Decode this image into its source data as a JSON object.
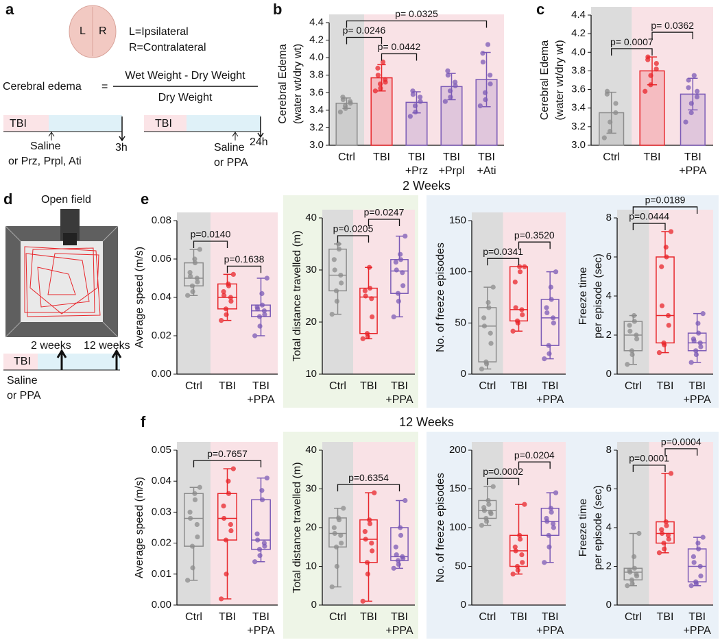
{
  "panel_a": {
    "letter": "a",
    "brain_left": "L",
    "brain_right": "R",
    "legend": [
      "L=Ipsilateral",
      "R=Contralateral"
    ],
    "formula_name": "Cerebral edema",
    "equals": "=",
    "numerator": "Wet Weight - Dry Weight",
    "denominator": "Dry Weight",
    "timeline_1": {
      "phase": "TBI",
      "treatment": [
        "Saline",
        "or Prz, Prpl, Ati"
      ],
      "end": "3h"
    },
    "timeline_2": {
      "phase": "TBI",
      "treatment": [
        "Saline",
        "or PPA"
      ],
      "end": "24h"
    }
  },
  "panel_d": {
    "letter": "d",
    "title": "Open field",
    "timepoints": [
      "2 weeks",
      "12 weeks"
    ],
    "phase": "TBI",
    "treatment": [
      "Saline",
      "or PPA"
    ]
  },
  "panel_letters": [
    "b",
    "c",
    "e",
    "f"
  ],
  "section_titles": [
    "2 Weeks",
    "12 Weeks"
  ],
  "chart_data": [
    {
      "type": "bar",
      "ylabel": [
        "Cerebral Edema",
        "(water wt/dry wt)"
      ],
      "categories": [
        [
          "Ctrl"
        ],
        [
          "TBI"
        ],
        [
          "TBI",
          "+Prz"
        ],
        [
          "TBI",
          "+Prpl"
        ],
        [
          "TBI",
          "+Ati"
        ]
      ],
      "colors": [
        "#8c8c8c",
        "#e8262b",
        "#7b5ab6",
        "#7b5ab6",
        "#7b5ab6"
      ],
      "values": [
        3.48,
        3.77,
        3.49,
        3.67,
        3.75
      ],
      "errors": [
        0.06,
        0.15,
        0.12,
        0.15,
        0.31
      ],
      "points": [
        [
          3.38,
          3.42,
          3.45,
          3.48,
          3.5,
          3.52,
          3.55
        ],
        [
          3.62,
          3.65,
          3.7,
          3.72,
          3.75,
          3.8,
          3.88,
          3.95
        ],
        [
          3.33,
          3.38,
          3.45,
          3.5,
          3.55,
          3.58,
          3.62
        ],
        [
          3.5,
          3.55,
          3.62,
          3.68,
          3.72,
          3.8,
          3.85
        ],
        [
          3.45,
          3.52,
          3.6,
          3.7,
          3.8,
          3.95,
          4.05,
          4.15
        ]
      ],
      "ylim": [
        3.0,
        4.4
      ],
      "yticks": [
        {
          "value": 3,
          "label": "3.0"
        },
        3.2,
        3.4,
        3.6,
        3.8,
        {
          "value": 4,
          "label": "4.0"
        },
        4.2,
        4.4
      ],
      "comparisons": [
        {
          "from": 1,
          "to": 2,
          "label": "p= 0.0442"
        },
        {
          "from": 0,
          "to": 1,
          "label": "p= 0.0246"
        },
        {
          "from": 0,
          "to": 4,
          "label": "p= 0.0325"
        }
      ]
    },
    {
      "type": "bar",
      "ylabel": [
        "Cerebral Edema",
        "(water wt/dry wt)"
      ],
      "categories": [
        [
          "Ctrl"
        ],
        [
          "TBI"
        ],
        [
          "TBI",
          "+PPA"
        ]
      ],
      "colors": [
        "#8c8c8c",
        "#e8262b",
        "#7b5ab6"
      ],
      "values": [
        3.35,
        3.8,
        3.55
      ],
      "errors": [
        0.22,
        0.15,
        0.17
      ],
      "points": [
        [
          3.08,
          3.15,
          3.25,
          3.35,
          3.45,
          3.55,
          3.58
        ],
        [
          3.58,
          3.65,
          3.75,
          3.82,
          3.88,
          3.92,
          3.95
        ],
        [
          3.25,
          3.35,
          3.45,
          3.52,
          3.58,
          3.62,
          3.7,
          3.75
        ]
      ],
      "ylim": [
        3.0,
        4.4
      ],
      "yticks": [
        {
          "value": 3,
          "label": "3.0"
        },
        3.2,
        3.4,
        3.6,
        3.8,
        {
          "value": 4,
          "label": "4.0"
        },
        4.2,
        4.4
      ],
      "comparisons": [
        {
          "from": 0,
          "to": 1,
          "label": "p= 0.0007"
        },
        {
          "from": 1,
          "to": 2,
          "label": "p= 0.0362"
        }
      ]
    },
    {
      "type": "box",
      "ylabel": [
        "Average speed (m/s)"
      ],
      "categories": [
        [
          "Ctrl"
        ],
        [
          "TBI"
        ],
        [
          "TBI",
          "+PPA"
        ]
      ],
      "colors": [
        "#8c8c8c",
        "#e8262b",
        "#7b5ab6"
      ],
      "min": [
        0.041,
        0.028,
        0.02
      ],
      "q1": [
        0.046,
        0.034,
        0.03
      ],
      "median": [
        0.05,
        0.04,
        0.033
      ],
      "q3": [
        0.058,
        0.047,
        0.036
      ],
      "max": [
        0.065,
        0.052,
        0.05
      ],
      "points": [
        [
          0.041,
          0.043,
          0.046,
          0.048,
          0.05,
          0.051,
          0.053,
          0.058,
          0.06,
          0.065
        ],
        [
          0.028,
          0.031,
          0.034,
          0.038,
          0.04,
          0.041,
          0.043,
          0.046,
          0.047,
          0.052
        ],
        [
          0.02,
          0.025,
          0.03,
          0.031,
          0.033,
          0.034,
          0.035,
          0.036,
          0.042,
          0.05
        ]
      ],
      "ylim": [
        0,
        0.08
      ],
      "yticks": [
        {
          "value": 0,
          "label": "0.00"
        },
        0.02,
        0.04,
        0.06,
        0.08
      ],
      "comparisons": [
        {
          "from": 1,
          "to": 2,
          "label": "p=0.1638"
        },
        {
          "from": 0,
          "to": 1,
          "label": "p=0.0140"
        }
      ]
    },
    {
      "type": "box",
      "ylabel": [
        "Total distance travelled (m)"
      ],
      "categories": [
        [
          "Ctrl"
        ],
        [
          "TBI"
        ],
        [
          "TBI",
          "+PPA"
        ]
      ],
      "colors": [
        "#8c8c8c",
        "#e8262b",
        "#7b5ab6"
      ],
      "min": [
        21.5,
        16.8,
        21
      ],
      "q1": [
        26,
        17.8,
        25.5
      ],
      "median": [
        29,
        24.8,
        29.8
      ],
      "q3": [
        34,
        26.5,
        32
      ],
      "max": [
        35,
        30.5,
        36.5
      ],
      "points": [
        [
          21.5,
          24,
          26,
          27.5,
          29,
          30,
          32,
          34,
          35
        ],
        [
          16.8,
          17.2,
          17.8,
          21,
          24.5,
          25,
          26,
          26.5,
          30.5
        ],
        [
          21,
          24,
          25.5,
          27,
          29.5,
          30,
          31.5,
          32,
          33,
          36.5
        ]
      ],
      "ylim": [
        10,
        40
      ],
      "yticks": [
        10,
        20,
        30,
        40
      ],
      "comparisons": [
        {
          "from": 0,
          "to": 1,
          "label": "p=0.0205"
        },
        {
          "from": 1,
          "to": 2,
          "label": "p=0.0247"
        }
      ]
    },
    {
      "type": "box",
      "ylabel": [
        "No. of freeze episodes"
      ],
      "categories": [
        [
          "Ctrl"
        ],
        [
          "TBI"
        ],
        [
          "TBI",
          "+PPA"
        ]
      ],
      "colors": [
        "#8c8c8c",
        "#e8262b",
        "#7b5ab6"
      ],
      "min": [
        5,
        42,
        15
      ],
      "q1": [
        12,
        52,
        28
      ],
      "median": [
        47,
        63,
        55
      ],
      "q3": [
        65,
        105,
        73
      ],
      "max": [
        85,
        105,
        100
      ],
      "points": [
        [
          5,
          10,
          12,
          30,
          40,
          47,
          55,
          65,
          70,
          85
        ],
        [
          42,
          50,
          52,
          58,
          63,
          65,
          90,
          100,
          105,
          105
        ],
        [
          15,
          20,
          28,
          50,
          55,
          60,
          65,
          73,
          85,
          100
        ]
      ],
      "ylim": [
        0,
        150
      ],
      "yticks": [
        0,
        50,
        100,
        150
      ],
      "comparisons": [
        {
          "from": 0,
          "to": 1,
          "label": "p=0.0341"
        },
        {
          "from": 1,
          "to": 2,
          "label": "p=0.3520"
        }
      ]
    },
    {
      "type": "box",
      "ylabel": [
        "Freeze time",
        "per episode (sec)"
      ],
      "categories": [
        [
          "Ctrl"
        ],
        [
          "TBI"
        ],
        [
          "TBI",
          "+PPA"
        ]
      ],
      "colors": [
        "#8c8c8c",
        "#e8262b",
        "#7b5ab6"
      ],
      "min": [
        0.5,
        1.1,
        0.6
      ],
      "q1": [
        1.2,
        1.6,
        1.2
      ],
      "median": [
        2,
        3,
        1.6
      ],
      "q3": [
        2.7,
        6,
        2.1
      ],
      "max": [
        3,
        7.3,
        3.1
      ],
      "points": [
        [
          0.5,
          1,
          1.2,
          1.8,
          2,
          2.2,
          2.5,
          2.7,
          3
        ],
        [
          1.1,
          1.5,
          1.6,
          2.5,
          3,
          3.5,
          5.5,
          6,
          6.5,
          7.3
        ],
        [
          0.6,
          1,
          1.2,
          1.4,
          1.6,
          1.7,
          1.8,
          2.1,
          2.6,
          3.1
        ]
      ],
      "ylim": [
        0,
        8
      ],
      "yticks": [
        0,
        2,
        4,
        6,
        8
      ],
      "comparisons": [
        {
          "from": 0,
          "to": 1,
          "label": "p=0.0444"
        },
        {
          "from": 0,
          "to": 2,
          "label": "p=0.0189"
        }
      ]
    },
    {
      "type": "box",
      "ylabel": [
        "Average speed (m/s)"
      ],
      "categories": [
        [
          "Ctrl"
        ],
        [
          "TBI"
        ],
        [
          "TBI",
          "+PPA"
        ]
      ],
      "colors": [
        "#8c8c8c",
        "#e8262b",
        "#7b5ab6"
      ],
      "min": [
        0.008,
        0.002,
        0.014
      ],
      "q1": [
        0.019,
        0.021,
        0.018
      ],
      "median": [
        0.028,
        0.028,
        0.021
      ],
      "q3": [
        0.036,
        0.036,
        0.034
      ],
      "max": [
        0.038,
        0.044,
        0.041
      ],
      "points": [
        [
          0.008,
          0.012,
          0.019,
          0.022,
          0.026,
          0.028,
          0.03,
          0.034,
          0.036,
          0.038
        ],
        [
          0.002,
          0.01,
          0.021,
          0.024,
          0.026,
          0.028,
          0.032,
          0.036,
          0.04,
          0.044
        ],
        [
          0.014,
          0.016,
          0.018,
          0.019,
          0.02,
          0.021,
          0.023,
          0.034,
          0.037,
          0.041
        ]
      ],
      "ylim": [
        0,
        0.05
      ],
      "yticks": [
        {
          "value": 0,
          "label": "0.00"
        },
        0.01,
        0.02,
        0.03,
        0.04,
        0.05
      ],
      "comparisons": [
        {
          "from": 0,
          "to": 2,
          "label": "p=0.7657"
        }
      ]
    },
    {
      "type": "box",
      "ylabel": [
        "Total distance travelled (m)"
      ],
      "categories": [
        [
          "Ctrl"
        ],
        [
          "TBI"
        ],
        [
          "TBI",
          "+PPA"
        ]
      ],
      "colors": [
        "#8c8c8c",
        "#e8262b",
        "#7b5ab6"
      ],
      "min": [
        4.7,
        1,
        9.5
      ],
      "q1": [
        15,
        11,
        11.5
      ],
      "median": [
        18.5,
        17,
        12.5
      ],
      "q3": [
        22.5,
        22,
        20
      ],
      "max": [
        25,
        29,
        27
      ],
      "points": [
        [
          4.7,
          10,
          15,
          16,
          18,
          18.5,
          20,
          22,
          22.5,
          25
        ],
        [
          1,
          8,
          11,
          14,
          16,
          17,
          19,
          21,
          22,
          29
        ],
        [
          9.5,
          10.5,
          11.5,
          12,
          12.5,
          13,
          15,
          18,
          20,
          27
        ]
      ],
      "ylim": [
        0,
        40
      ],
      "yticks": [
        0,
        10,
        20,
        30,
        40
      ],
      "comparisons": [
        {
          "from": 0,
          "to": 2,
          "label": "p=0.6354"
        }
      ]
    },
    {
      "type": "box",
      "ylabel": [
        "No. of freeze episodes"
      ],
      "categories": [
        [
          "Ctrl"
        ],
        [
          "TBI"
        ],
        [
          "TBI",
          "+PPA"
        ]
      ],
      "colors": [
        "#8c8c8c",
        "#e8262b",
        "#7b5ab6"
      ],
      "min": [
        103,
        40,
        55
      ],
      "q1": [
        112,
        50,
        90
      ],
      "median": [
        122,
        70,
        108
      ],
      "q3": [
        135,
        90,
        125
      ],
      "max": [
        153,
        130,
        145
      ],
      "points": [
        [
          103,
          108,
          112,
          118,
          120,
          122,
          126,
          130,
          135,
          153
        ],
        [
          40,
          45,
          50,
          55,
          65,
          70,
          75,
          85,
          90,
          130
        ],
        [
          55,
          75,
          90,
          100,
          105,
          108,
          112,
          120,
          125,
          145
        ]
      ],
      "ylim": [
        0,
        200
      ],
      "yticks": [
        0,
        50,
        100,
        150,
        200
      ],
      "comparisons": [
        {
          "from": 0,
          "to": 1,
          "label": "p=0.0002"
        },
        {
          "from": 1,
          "to": 2,
          "label": "p=0.0204"
        }
      ]
    },
    {
      "type": "box",
      "ylabel": [
        "Freeze time",
        "per episode (sec)"
      ],
      "categories": [
        [
          "Ctrl"
        ],
        [
          "TBI"
        ],
        [
          "TBI",
          "+PPA"
        ]
      ],
      "colors": [
        "#8c8c8c",
        "#e8262b",
        "#7b5ab6"
      ],
      "min": [
        1,
        2.7,
        1
      ],
      "q1": [
        1.3,
        3.2,
        1.2
      ],
      "median": [
        1.7,
        3.7,
        2
      ],
      "q3": [
        1.9,
        4.3,
        2.9
      ],
      "max": [
        3.7,
        6.8,
        3.5
      ],
      "points": [
        [
          1,
          1.1,
          1.3,
          1.5,
          1.6,
          1.7,
          1.8,
          1.9,
          2.5,
          3.7
        ],
        [
          2.7,
          2.9,
          3.2,
          3.4,
          3.6,
          3.7,
          3.9,
          4.1,
          4.3,
          6.8
        ],
        [
          1,
          1.1,
          1.2,
          1.5,
          2,
          2.2,
          2.5,
          2.9,
          3.2,
          3.5
        ]
      ],
      "ylim": [
        0,
        8
      ],
      "yticks": [
        0,
        2,
        4,
        6,
        8
      ],
      "comparisons": [
        {
          "from": 0,
          "to": 1,
          "label": "p=0.0001"
        },
        {
          "from": 1,
          "to": 2,
          "label": "p=0.0004"
        }
      ]
    }
  ]
}
